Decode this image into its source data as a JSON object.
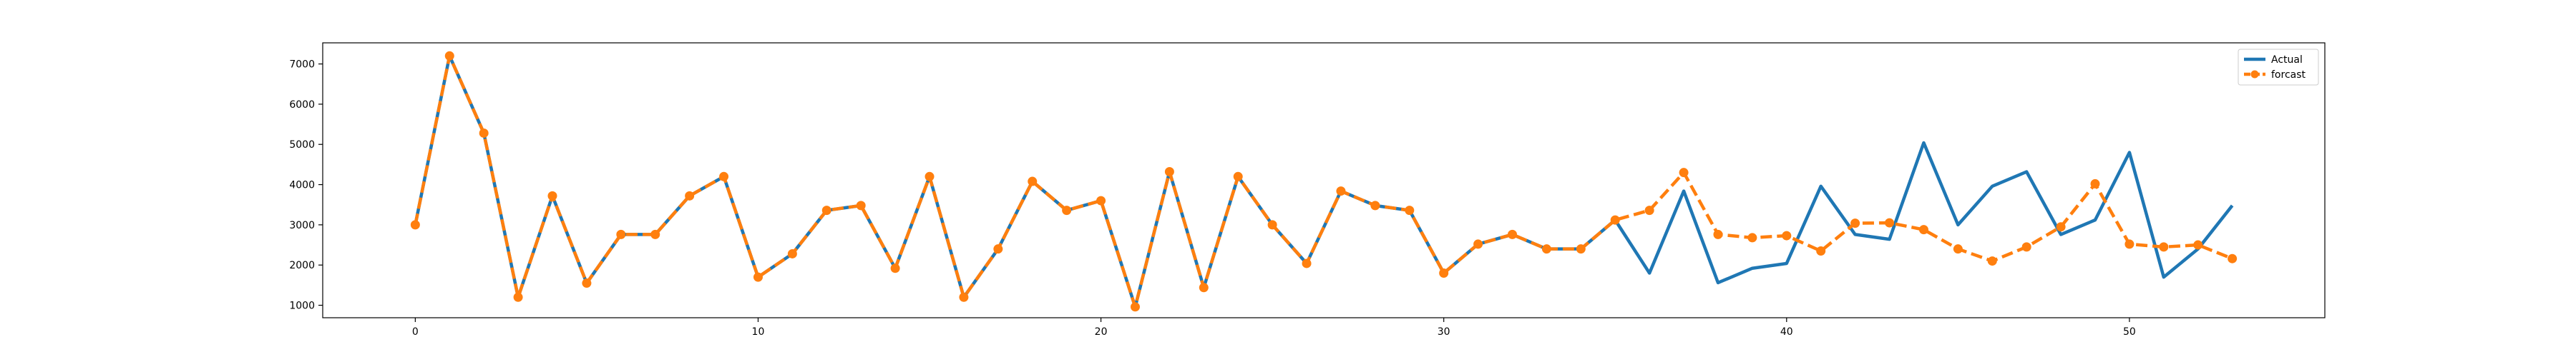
{
  "chart_data": {
    "type": "line",
    "title": "",
    "xlabel": "",
    "ylabel": "",
    "xlim": [
      -2.7,
      55.7
    ],
    "ylim": [
      690,
      7525
    ],
    "x_ticks": [
      0,
      10,
      20,
      30,
      40,
      50
    ],
    "y_ticks": [
      1000,
      2000,
      3000,
      4000,
      5000,
      6000,
      7000
    ],
    "grid": false,
    "legend_position": "top-right",
    "series": [
      {
        "name": "Actual",
        "color": "#1f77b4",
        "style": "solid",
        "marker": "none",
        "x": [
          0,
          1,
          2,
          3,
          4,
          5,
          6,
          7,
          8,
          9,
          10,
          11,
          12,
          13,
          14,
          15,
          16,
          17,
          18,
          19,
          20,
          21,
          22,
          23,
          24,
          25,
          26,
          27,
          28,
          29,
          30,
          31,
          32,
          33,
          34,
          35,
          36,
          37,
          38,
          39,
          40,
          41,
          42,
          43,
          44,
          45,
          46,
          47,
          48,
          49,
          50,
          51,
          52,
          53
        ],
        "values": [
          3000,
          7200,
          5280,
          1200,
          3720,
          1550,
          2760,
          2760,
          3720,
          4200,
          1700,
          2280,
          3360,
          3480,
          1920,
          4200,
          1200,
          2400,
          4080,
          3360,
          3600,
          960,
          4320,
          1440,
          4200,
          3000,
          2040,
          3840,
          3480,
          3360,
          1800,
          2520,
          2760,
          2400,
          2400,
          3120,
          1800,
          3840,
          1560,
          1920,
          2040,
          3960,
          2760,
          2640,
          5040,
          3000,
          3960,
          4320,
          2760,
          3120,
          4800,
          1700,
          2400,
          3480
        ]
      },
      {
        "name": "forcast",
        "color": "#ff7f0e",
        "style": "dashed",
        "marker": "circle",
        "x": [
          0,
          1,
          2,
          3,
          4,
          5,
          6,
          7,
          8,
          9,
          10,
          11,
          12,
          13,
          14,
          15,
          16,
          17,
          18,
          19,
          20,
          21,
          22,
          23,
          24,
          25,
          26,
          27,
          28,
          29,
          30,
          31,
          32,
          33,
          34,
          35,
          36,
          37,
          38,
          39,
          40,
          41,
          42,
          43,
          44,
          45,
          46,
          47,
          48,
          49,
          50,
          51,
          52,
          53
        ],
        "values": [
          3000,
          7200,
          5280,
          1200,
          3720,
          1550,
          2760,
          2760,
          3720,
          4200,
          1700,
          2280,
          3360,
          3480,
          1920,
          4200,
          1200,
          2400,
          4080,
          3360,
          3600,
          960,
          4320,
          1440,
          4200,
          3000,
          2040,
          3840,
          3480,
          3360,
          1800,
          2520,
          2760,
          2400,
          2400,
          3120,
          3360,
          4300,
          2760,
          2680,
          2730,
          2350,
          3040,
          3050,
          2880,
          2400,
          2100,
          2450,
          2950,
          4020,
          2520,
          2450,
          2500,
          2160
        ]
      }
    ]
  }
}
